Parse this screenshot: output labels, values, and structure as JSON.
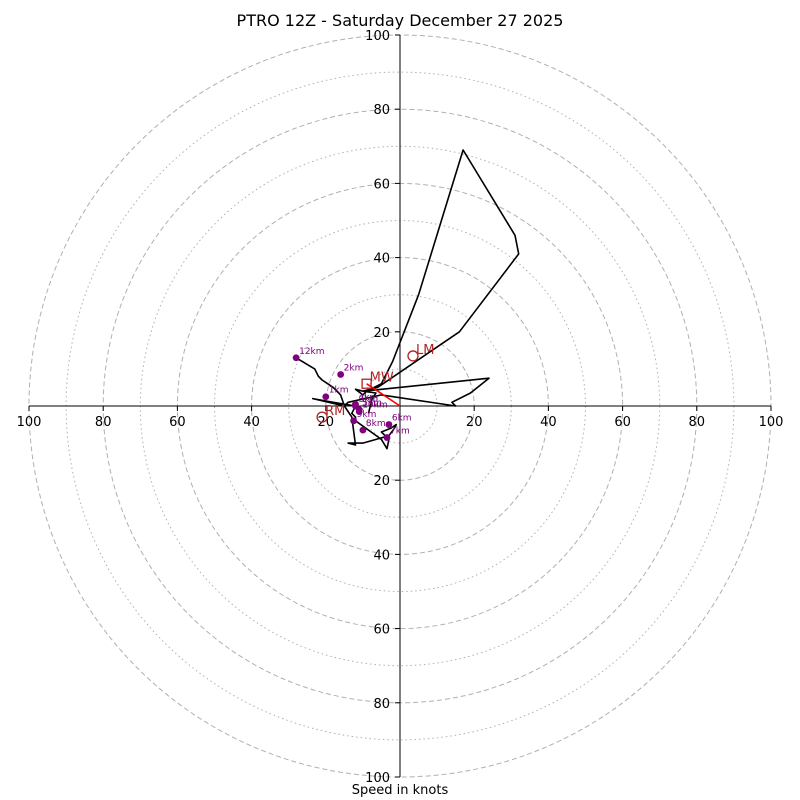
{
  "chart_data": {
    "type": "hodograph",
    "title": "PTRO 12Z - Saturday December 27 2025",
    "xlabel": "Speed in knots",
    "max_speed": 100,
    "major_rings": [
      20,
      40,
      60,
      80,
      100
    ],
    "minor_rings": [
      10,
      30,
      50,
      70,
      90
    ],
    "x_tick_labels": [
      "100",
      "80",
      "60",
      "40",
      "20",
      "20",
      "40",
      "60",
      "80",
      "100"
    ],
    "x_tick_values": [
      -100,
      -80,
      -60,
      -40,
      -20,
      20,
      40,
      60,
      80,
      100
    ],
    "y_tick_labels": [
      "100",
      "80",
      "60",
      "40",
      "20",
      "20",
      "40",
      "60",
      "80",
      "100"
    ],
    "y_tick_values": [
      100,
      80,
      60,
      40,
      20,
      -20,
      -40,
      -60,
      -80,
      -100
    ],
    "trace_uv": [
      [
        -8.5,
        -2
      ],
      [
        -8,
        0
      ],
      [
        -7.5,
        2
      ],
      [
        -6.5,
        3.5
      ],
      [
        -10,
        4
      ],
      [
        -12,
        4.5
      ],
      [
        -10,
        3
      ],
      [
        -9,
        4
      ],
      [
        -5,
        6
      ],
      [
        -2,
        12
      ],
      [
        5,
        30
      ],
      [
        17,
        69
      ],
      [
        31,
        46
      ],
      [
        32,
        41
      ],
      [
        16,
        20
      ],
      [
        -6,
        5
      ],
      [
        -10,
        4
      ],
      [
        -5,
        4.5
      ],
      [
        24,
        7.5
      ],
      [
        19,
        3.5
      ],
      [
        14,
        1
      ],
      [
        15,
        0
      ],
      [
        -5,
        3
      ],
      [
        -14,
        1
      ],
      [
        -15,
        0
      ],
      [
        -23.5,
        2
      ],
      [
        -18,
        1
      ],
      [
        -12,
        0
      ],
      [
        -13,
        -2
      ],
      [
        -12,
        -3
      ],
      [
        -12,
        -4
      ],
      [
        -5,
        -9
      ],
      [
        -3.5,
        -11.5
      ],
      [
        -3,
        -9
      ],
      [
        -5,
        -7
      ],
      [
        -2.5,
        -6
      ],
      [
        -1,
        -5
      ],
      [
        -1.5,
        -6
      ],
      [
        -3,
        -8
      ],
      [
        -10,
        -10
      ],
      [
        -14,
        -10
      ],
      [
        -12,
        -10.5
      ],
      [
        -13,
        -3
      ],
      [
        -15,
        0
      ],
      [
        -16,
        3
      ],
      [
        -18,
        5
      ],
      [
        -21,
        7
      ],
      [
        -22,
        8
      ],
      [
        -23,
        10
      ],
      [
        -28,
        13
      ]
    ],
    "height_points": [
      {
        "label": "1km",
        "u": -20,
        "v": 2.5
      },
      {
        "label": "2km",
        "u": -16,
        "v": 8.5
      },
      {
        "label": "3km",
        "u": -12,
        "v": 0
      },
      {
        "label": "4km",
        "u": -12,
        "v": 0.5
      },
      {
        "label": "5km",
        "u": -11,
        "v": -1
      },
      {
        "label": "6km",
        "u": -3,
        "v": -5
      },
      {
        "label": "7km",
        "u": -3.5,
        "v": -8.5
      },
      {
        "label": "8km",
        "u": -10,
        "v": -6.5
      },
      {
        "label": "9km",
        "u": -12.5,
        "v": -4
      },
      {
        "label": "10km",
        "u": -11,
        "v": -1.5
      },
      {
        "label": "12km",
        "u": -28,
        "v": 13
      }
    ],
    "storm_motions": [
      {
        "label": "LM",
        "u": 3.5,
        "v": 13.5,
        "marker": "circle"
      },
      {
        "label": "RM",
        "u": -21,
        "v": -3,
        "marker": "circle"
      },
      {
        "label": "MW",
        "u": -9,
        "v": 6,
        "marker": "square"
      }
    ],
    "shear_vector": {
      "from_u": 0,
      "from_v": 0,
      "to_u": -9,
      "to_v": 6,
      "color": "#ff0000"
    },
    "colors": {
      "trace": "#000000",
      "height_points": "#800080",
      "storm_motion": "#b22222",
      "shear": "#ff0000",
      "grid": "#b0b0b0",
      "axes": "#000000"
    }
  }
}
